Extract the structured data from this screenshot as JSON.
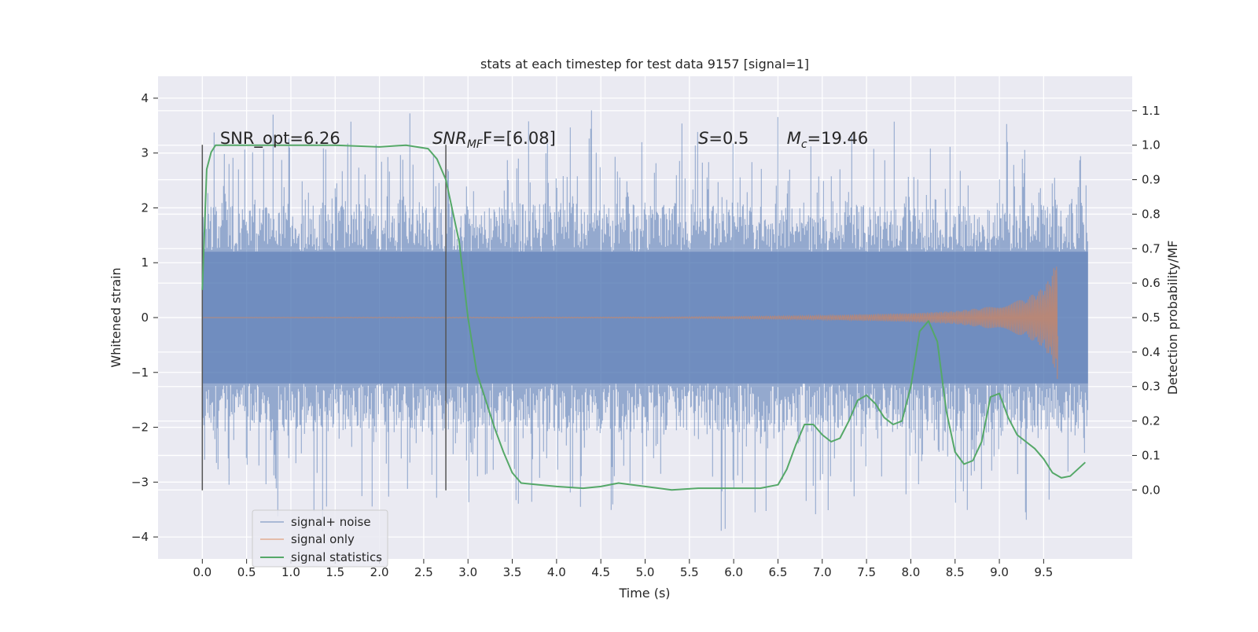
{
  "chart_data": {
    "type": "line",
    "title": "stats at each timestep for test data 9157 [signal=1]",
    "xlabel": "Time (s)",
    "ylabel": "Whitened strain",
    "y2label": "Detection probability/MF",
    "xlim": [
      -0.5,
      10.5
    ],
    "ylim": [
      -4.4,
      4.4
    ],
    "y2lim": [
      -0.2,
      1.2
    ],
    "xticks": [
      0.0,
      0.5,
      1.0,
      1.5,
      2.0,
      2.5,
      3.0,
      3.5,
      4.0,
      4.5,
      5.0,
      5.5,
      6.0,
      6.5,
      7.0,
      7.5,
      8.0,
      8.5,
      9.0,
      9.5
    ],
    "xtick_labels": [
      "0.0",
      "0.5",
      "1.0",
      "1.5",
      "2.0",
      "2.5",
      "3.0",
      "3.5",
      "4.0",
      "4.5",
      "5.0",
      "5.5",
      "6.0",
      "6.5",
      "7.0",
      "7.5",
      "8.0",
      "8.5",
      "9.0",
      "9.5"
    ],
    "yticks": [
      -4,
      -3,
      -2,
      -1,
      0,
      1,
      2,
      3,
      4
    ],
    "ytick_labels": [
      "−4",
      "−3",
      "−2",
      "−1",
      "0",
      "1",
      "2",
      "3",
      "4"
    ],
    "y2ticks": [
      0.0,
      0.1,
      0.2,
      0.3,
      0.4,
      0.5,
      0.6,
      0.7,
      0.8,
      0.9,
      1.0,
      1.1
    ],
    "y2tick_labels": [
      "0.0",
      "0.1",
      "0.2",
      "0.3",
      "0.4",
      "0.5",
      "0.6",
      "0.7",
      "0.8",
      "0.9",
      "1.0",
      "1.1"
    ],
    "grid": true,
    "legend_position": "lower-left",
    "annotations": [
      {
        "id": "snr-opt",
        "text": "SNR_opt=6.26",
        "x": 0.2
      },
      {
        "id": "snr-mf",
        "prefix": "SNR",
        "sub": "MF",
        "suffix": "F=[6.08]",
        "x": 2.6
      },
      {
        "id": "s-param",
        "prefix": "S",
        "sub": "",
        "suffix": "=0.5",
        "x": 5.6
      },
      {
        "id": "mc-param",
        "prefix": "M",
        "sub": "c",
        "suffix": "=19.46",
        "x": 6.6
      }
    ],
    "vertical_markers": [
      {
        "x": 0.0,
        "y_range": [
          -3.15,
          3.15
        ]
      },
      {
        "x": 2.75,
        "y_range": [
          -3.15,
          3.15
        ]
      }
    ],
    "series": [
      {
        "name": "signal+ noise",
        "color": "#4c72b0",
        "axis": "left",
        "description": "dense whitened noise from 0 to 10 s",
        "x_range": [
          0.0,
          10.0
        ],
        "typical_range": [
          -1.2,
          1.2
        ],
        "peak_range": [
          -4.1,
          4.0
        ]
      },
      {
        "name": "signal only",
        "color": "#dd8452",
        "axis": "left",
        "x_range": [
          0.0,
          9.66
        ],
        "envelope": [
          [
            0.0,
            0.0
          ],
          [
            5.0,
            0.01
          ],
          [
            6.0,
            0.02
          ],
          [
            7.0,
            0.04
          ],
          [
            8.0,
            0.08
          ],
          [
            8.5,
            0.12
          ],
          [
            9.0,
            0.22
          ],
          [
            9.3,
            0.35
          ],
          [
            9.5,
            0.55
          ],
          [
            9.6,
            0.8
          ],
          [
            9.66,
            1.25
          ]
        ]
      },
      {
        "name": "signal statistics",
        "color": "#55a868",
        "axis": "right",
        "x": [
          0.0,
          0.05,
          0.1,
          0.15,
          0.2,
          0.5,
          1.0,
          1.5,
          2.0,
          2.3,
          2.55,
          2.65,
          2.75,
          2.9,
          3.0,
          3.1,
          3.2,
          3.3,
          3.4,
          3.5,
          3.6,
          3.8,
          4.0,
          4.3,
          4.5,
          4.7,
          5.0,
          5.3,
          5.6,
          5.8,
          6.0,
          6.3,
          6.5,
          6.6,
          6.7,
          6.8,
          6.9,
          7.0,
          7.1,
          7.2,
          7.3,
          7.4,
          7.5,
          7.6,
          7.7,
          7.8,
          7.9,
          8.0,
          8.1,
          8.2,
          8.3,
          8.4,
          8.5,
          8.6,
          8.7,
          8.8,
          8.9,
          9.0,
          9.1,
          9.2,
          9.3,
          9.4,
          9.5,
          9.6,
          9.7,
          9.8,
          9.97
        ],
        "values": [
          0.58,
          0.93,
          0.98,
          1.0,
          1.0,
          1.0,
          1.0,
          1.0,
          0.995,
          1.0,
          0.99,
          0.96,
          0.9,
          0.72,
          0.5,
          0.34,
          0.26,
          0.18,
          0.11,
          0.05,
          0.02,
          0.015,
          0.01,
          0.005,
          0.01,
          0.02,
          0.01,
          0.0,
          0.005,
          0.005,
          0.005,
          0.005,
          0.015,
          0.06,
          0.13,
          0.19,
          0.19,
          0.16,
          0.14,
          0.15,
          0.2,
          0.26,
          0.275,
          0.25,
          0.21,
          0.19,
          0.2,
          0.3,
          0.46,
          0.49,
          0.43,
          0.23,
          0.11,
          0.075,
          0.085,
          0.14,
          0.27,
          0.28,
          0.21,
          0.16,
          0.14,
          0.12,
          0.09,
          0.05,
          0.035,
          0.04,
          0.08
        ]
      }
    ]
  }
}
